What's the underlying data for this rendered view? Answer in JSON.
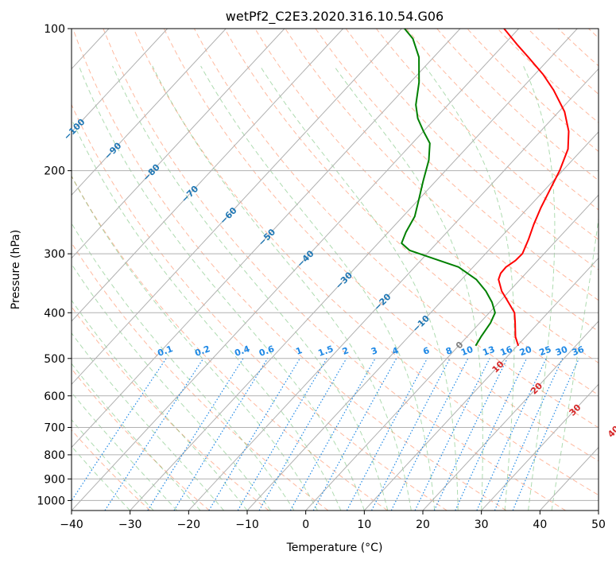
{
  "chart_data": {
    "type": "line",
    "title": "wetPf2_C2E3.2020.316.10.54.G06",
    "xlabel": "Temperature (°C)",
    "ylabel": "Pressure (hPa)",
    "xlim": [
      -40,
      50
    ],
    "ylim": [
      1050,
      100
    ],
    "y_scale": "log",
    "grid": true,
    "x_ticks": [
      -40,
      -30,
      -20,
      -10,
      0,
      10,
      20,
      30,
      40,
      50
    ],
    "y_ticks": [
      100,
      200,
      300,
      400,
      500,
      600,
      700,
      800,
      900,
      1000
    ],
    "series": [
      {
        "color": "#ff0000",
        "points": [
          {
            "p": 470,
            "t": 10.2
          },
          {
            "p": 450,
            "t": 8.3
          },
          {
            "p": 420,
            "t": 6.0
          },
          {
            "p": 400,
            "t": 4.3
          },
          {
            "p": 380,
            "t": 1.6
          },
          {
            "p": 360,
            "t": -1.3
          },
          {
            "p": 340,
            "t": -3.7
          },
          {
            "p": 330,
            "t": -4.3
          },
          {
            "p": 320,
            "t": -4.4
          },
          {
            "p": 310,
            "t": -3.8
          },
          {
            "p": 300,
            "t": -3.7
          },
          {
            "p": 280,
            "t": -4.9
          },
          {
            "p": 260,
            "t": -6.4
          },
          {
            "p": 240,
            "t": -7.8
          },
          {
            "p": 220,
            "t": -9.1
          },
          {
            "p": 200,
            "t": -10.5
          },
          {
            "p": 180,
            "t": -12.5
          },
          {
            "p": 165,
            "t": -15.2
          },
          {
            "p": 150,
            "t": -19.0
          },
          {
            "p": 135,
            "t": -24.3
          },
          {
            "p": 125,
            "t": -28.6
          },
          {
            "p": 115,
            "t": -33.8
          },
          {
            "p": 108,
            "t": -37.8
          },
          {
            "p": 100,
            "t": -42.5
          }
        ]
      },
      {
        "color": "#008000",
        "points": [
          {
            "p": 470,
            "t": 2.9
          },
          {
            "p": 450,
            "t": 2.4
          },
          {
            "p": 420,
            "t": 1.8
          },
          {
            "p": 400,
            "t": 1.0
          },
          {
            "p": 380,
            "t": -1.2
          },
          {
            "p": 360,
            "t": -4.0
          },
          {
            "p": 340,
            "t": -7.5
          },
          {
            "p": 320,
            "t": -12.5
          },
          {
            "p": 305,
            "t": -19.0
          },
          {
            "p": 295,
            "t": -23.5
          },
          {
            "p": 285,
            "t": -26.0
          },
          {
            "p": 270,
            "t": -27.0
          },
          {
            "p": 250,
            "t": -28.0
          },
          {
            "p": 230,
            "t": -30.0
          },
          {
            "p": 210,
            "t": -32.2
          },
          {
            "p": 190,
            "t": -34.5
          },
          {
            "p": 175,
            "t": -37.0
          },
          {
            "p": 165,
            "t": -40.0
          },
          {
            "p": 155,
            "t": -43.0
          },
          {
            "p": 145,
            "t": -45.5
          },
          {
            "p": 130,
            "t": -48.5
          },
          {
            "p": 115,
            "t": -52.5
          },
          {
            "p": 105,
            "t": -56.5
          },
          {
            "p": 100,
            "t": -59.5
          }
        ]
      }
    ],
    "isotherms": [
      -100,
      -90,
      -80,
      -70,
      -60,
      -50,
      -40,
      -30,
      -20,
      -10,
      0,
      10,
      20,
      30,
      40
    ],
    "isotherm_label_color_cold": "#1f77b4",
    "isotherm_label_color_zero": "#808080",
    "isotherm_label_color_warm": "#d62728",
    "mixing_ratio_lines": [
      0.1,
      0.2,
      0.4,
      0.6,
      1,
      1.5,
      2,
      3,
      4,
      6,
      8,
      10,
      13,
      16,
      20,
      25,
      30,
      36
    ],
    "mixing_ratio_color": "#1e88e5",
    "dry_adiabat_color": "#ff7f50",
    "moist_adiabat_color": "#4caf50",
    "grid_color": "#b0b0b0"
  }
}
